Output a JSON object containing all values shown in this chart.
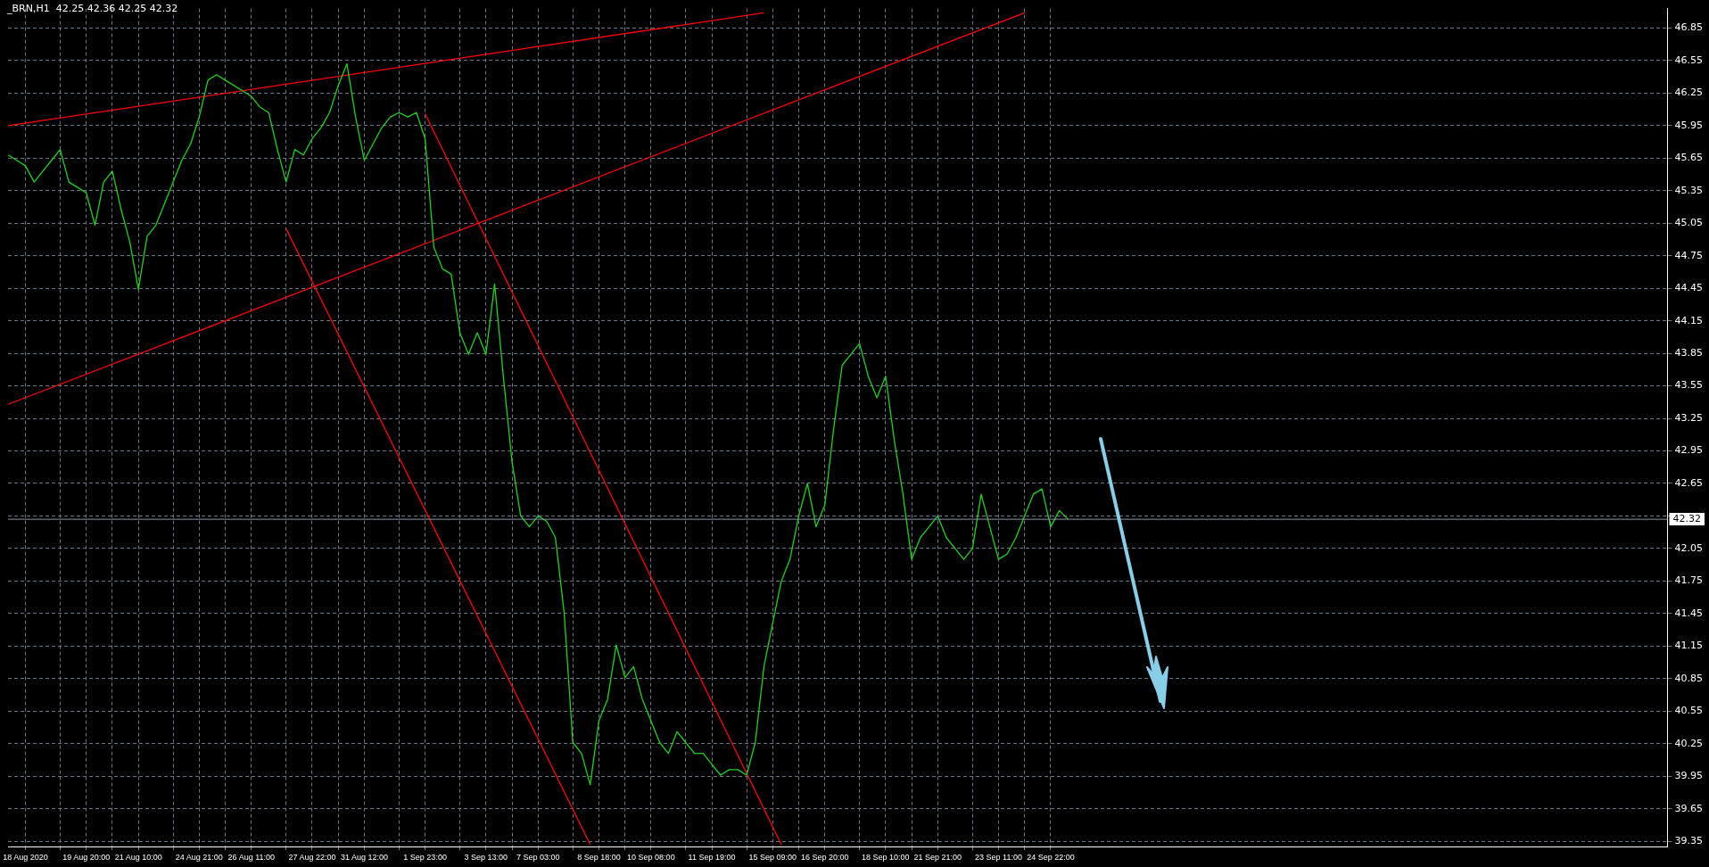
{
  "chart_data": {
    "type": "line",
    "title": "_BRN,H1  42.25 42.36 42.25 42.32",
    "categories": [
      null,
      null,
      "18 Aug 2020",
      null,
      null,
      null,
      null,
      null,
      null,
      "19 Aug 20:00",
      null,
      null,
      null,
      null,
      null,
      "21 Aug 10:00",
      null,
      null,
      null,
      null,
      null,
      null,
      "24 Aug 21:00",
      null,
      null,
      null,
      null,
      null,
      "26 Aug 11:00",
      null,
      null,
      null,
      null,
      null,
      null,
      "27 Aug 22:00",
      null,
      null,
      null,
      null,
      null,
      "31 Aug 12:00",
      null,
      null,
      null,
      null,
      null,
      null,
      "1 Sep 23:00",
      null,
      null,
      null,
      null,
      null,
      null,
      "3 Sep 13:00",
      null,
      null,
      null,
      null,
      null,
      "7 Sep 03:00",
      null,
      null,
      null,
      null,
      null,
      null,
      "8 Sep 18:00",
      null,
      null,
      null,
      null,
      null,
      "10 Sep 08:00",
      null,
      null,
      null,
      null,
      null,
      null,
      "11 Sep 19:00",
      null,
      null,
      null,
      null,
      null,
      null,
      "15 Sep 09:00",
      null,
      null,
      null,
      null,
      null,
      "16 Sep 20:00",
      null,
      null,
      null,
      null,
      null,
      null,
      "18 Sep 10:00",
      null,
      null,
      null,
      null,
      null,
      "21 Sep 21:00",
      null,
      null,
      null,
      null,
      null,
      null,
      "23 Sep 11:00",
      null,
      null,
      null,
      null,
      null,
      "24 Sep 22:00",
      null,
      null,
      null,
      null,
      null,
      null,
      null,
      null,
      null,
      null,
      null,
      null,
      null,
      null,
      null,
      null,
      null,
      null,
      null,
      null,
      null,
      null,
      null,
      null,
      null,
      null,
      null,
      null,
      null,
      null,
      null,
      null,
      null,
      null,
      null,
      null,
      null,
      null,
      null,
      null,
      null,
      null,
      null,
      null,
      null,
      null,
      null,
      null,
      null,
      null,
      null,
      null,
      null,
      null,
      null,
      null,
      null,
      null,
      null,
      null,
      null,
      null,
      null,
      null,
      null,
      null,
      null,
      null,
      null,
      null,
      null
    ],
    "series": [
      {
        "color": "#1ed21e",
        "values": [
          45.68,
          45.63,
          45.58,
          45.43,
          45.53,
          45.63,
          45.73,
          45.43,
          45.38,
          45.33,
          45.03,
          45.43,
          45.53,
          45.18,
          44.88,
          44.44,
          44.93,
          45.03,
          45.23,
          45.43,
          45.63,
          45.78,
          46.03,
          46.37,
          46.42,
          46.37,
          46.32,
          46.27,
          46.22,
          46.12,
          46.07,
          45.73,
          45.43,
          45.73,
          45.68,
          45.83,
          45.93,
          46.07,
          46.32,
          46.52,
          46.03,
          45.63,
          45.78,
          45.93,
          46.03,
          46.07,
          46.03,
          46.07,
          45.83,
          44.83,
          44.63,
          44.58,
          44.04,
          43.84,
          44.04,
          43.84,
          44.49,
          43.64,
          42.85,
          42.35,
          42.25,
          42.35,
          42.3,
          42.15,
          41.46,
          40.26,
          40.16,
          39.87,
          40.46,
          40.66,
          41.16,
          40.86,
          40.96,
          40.66,
          40.46,
          40.26,
          40.16,
          40.36,
          40.26,
          40.16,
          40.16,
          40.06,
          39.96,
          40.01,
          40.01,
          39.96,
          40.26,
          40.96,
          41.36,
          41.75,
          41.95,
          42.35,
          42.65,
          42.25,
          42.45,
          43.14,
          43.74,
          43.84,
          43.94,
          43.64,
          43.44,
          43.64,
          43.05,
          42.55,
          41.95,
          42.15,
          42.25,
          42.35,
          42.15,
          42.05,
          41.95,
          42.05,
          42.55,
          42.25,
          41.95,
          42.0,
          42.15,
          42.35,
          42.55,
          42.6,
          42.25,
          42.4,
          42.32,
          null,
          null,
          null,
          null,
          null,
          null,
          null,
          null,
          null,
          null,
          null,
          null,
          null,
          null,
          null,
          null,
          null,
          null,
          null,
          null,
          null,
          null,
          null,
          null,
          null,
          null,
          null,
          null,
          null,
          null,
          null,
          null,
          null,
          null,
          null,
          null,
          null,
          null,
          null,
          null,
          null,
          null,
          null,
          null,
          null,
          null,
          null,
          null,
          null,
          null,
          null,
          null,
          null,
          null,
          null,
          null,
          null,
          null,
          null,
          null,
          null,
          null,
          null,
          null,
          null,
          null,
          null,
          null,
          null
        ]
      },
      {
        "type": "line",
        "color": "#ff0000",
        "values": [
          45.95,
          null,
          null,
          null,
          null,
          null,
          null,
          null,
          null,
          null,
          null,
          null,
          null,
          null,
          null,
          null,
          null,
          null,
          null,
          null,
          null,
          null,
          null,
          null,
          null,
          null,
          null,
          null,
          null,
          null,
          null,
          null,
          null,
          null,
          null,
          null,
          null,
          null,
          null,
          null,
          null,
          null,
          null,
          null,
          null,
          null,
          null,
          null,
          null,
          null,
          null,
          null,
          null,
          null,
          null,
          null,
          null,
          null,
          null,
          null,
          null,
          null,
          null,
          null,
          null,
          null,
          null,
          null,
          null,
          null,
          null,
          null,
          null,
          null,
          null,
          null,
          null,
          null,
          null,
          null,
          null,
          null,
          null,
          null,
          null,
          null,
          null,
          46.99,
          null,
          null,
          null,
          null,
          null,
          null,
          null,
          null,
          null,
          null,
          null,
          null,
          null,
          null,
          null,
          null,
          null,
          null,
          null,
          null,
          null,
          null,
          null,
          null,
          null,
          null,
          null,
          null,
          null,
          null,
          null,
          null,
          null,
          null,
          null,
          null,
          null,
          null,
          null,
          null,
          null,
          null,
          null,
          null,
          null,
          null,
          null,
          null,
          null,
          null,
          null,
          null,
          null,
          null,
          null,
          null,
          null,
          null,
          null,
          null,
          null,
          null,
          null,
          null,
          null,
          null,
          null,
          null,
          null,
          null,
          null,
          null,
          null,
          null,
          null,
          null,
          null,
          null,
          null,
          null,
          null,
          null,
          null,
          null,
          null,
          null,
          null,
          null,
          null,
          null,
          null,
          null,
          null,
          null,
          null,
          null,
          null,
          null,
          null,
          null,
          null,
          null,
          null,
          null
        ]
      },
      {
        "type": "line",
        "color": "#ff0000",
        "values": [
          43.38,
          null,
          null,
          null,
          null,
          null,
          null,
          null,
          null,
          null,
          null,
          null,
          null,
          null,
          null,
          null,
          null,
          null,
          null,
          null,
          null,
          null,
          null,
          null,
          null,
          null,
          null,
          null,
          null,
          null,
          null,
          null,
          null,
          null,
          null,
          null,
          null,
          null,
          null,
          null,
          null,
          null,
          null,
          null,
          null,
          null,
          null,
          null,
          null,
          null,
          null,
          null,
          null,
          null,
          null,
          null,
          null,
          null,
          null,
          null,
          null,
          null,
          null,
          null,
          null,
          null,
          null,
          null,
          null,
          null,
          null,
          null,
          null,
          null,
          null,
          null,
          null,
          null,
          null,
          null,
          null,
          null,
          null,
          null,
          null,
          null,
          null,
          null,
          null,
          null,
          null,
          null,
          null,
          null,
          null,
          null,
          null,
          null,
          null,
          null,
          null,
          null,
          null,
          null,
          null,
          null,
          null,
          null,
          null,
          null,
          null,
          null,
          null,
          null,
          null,
          null,
          null,
          46.99,
          null,
          null,
          null,
          null,
          null,
          null,
          null,
          null,
          null,
          null,
          null,
          null,
          null,
          null,
          null,
          null,
          null,
          null,
          null,
          null,
          null,
          null,
          null,
          null,
          null,
          null,
          null,
          null,
          null,
          null,
          null,
          null,
          null,
          null,
          null,
          null,
          null,
          null,
          null,
          null,
          null,
          null,
          null,
          null,
          null,
          null,
          null,
          null,
          null,
          null,
          null,
          null,
          null,
          null,
          null,
          null,
          null,
          null,
          null,
          null,
          null,
          null,
          null,
          null,
          null,
          null,
          null,
          null,
          null,
          null,
          null,
          null,
          null,
          null
        ]
      },
      {
        "type": "line",
        "color": "#ff0000",
        "values": [
          null,
          null,
          null,
          null,
          null,
          null,
          null,
          null,
          null,
          null,
          null,
          null,
          null,
          null,
          null,
          null,
          null,
          null,
          null,
          null,
          null,
          null,
          null,
          null,
          null,
          null,
          null,
          null,
          null,
          null,
          null,
          null,
          45.0,
          null,
          null,
          null,
          null,
          null,
          null,
          null,
          null,
          null,
          null,
          null,
          null,
          null,
          null,
          null,
          null,
          null,
          null,
          null,
          null,
          null,
          null,
          null,
          null,
          null,
          null,
          null,
          null,
          null,
          null,
          null,
          null,
          null,
          null,
          39.32,
          null,
          null,
          null,
          null,
          null,
          null,
          null,
          null,
          null,
          null,
          null,
          null,
          null,
          null,
          null,
          null,
          null,
          null,
          null,
          null,
          null,
          null,
          null,
          null,
          null,
          null,
          null,
          null,
          null,
          null,
          null,
          null,
          null,
          null,
          null,
          null,
          null,
          null,
          null,
          null,
          null,
          null,
          null,
          null,
          null,
          null,
          null,
          null,
          null,
          null,
          null,
          null,
          null,
          null,
          null,
          null,
          null,
          null,
          null,
          null,
          null,
          null,
          null,
          null,
          null,
          null,
          null,
          null,
          null,
          null,
          null,
          null,
          null,
          null,
          null,
          null,
          null,
          null,
          null,
          null,
          null,
          null,
          null,
          null,
          null,
          null,
          null,
          null,
          null,
          null,
          null,
          null,
          null,
          null,
          null,
          null,
          null,
          null,
          null,
          null,
          null,
          null,
          null,
          null,
          null,
          null,
          null,
          null,
          null,
          null,
          null,
          null,
          null,
          null,
          null,
          null,
          null,
          null,
          null,
          null,
          null,
          null,
          null,
          null
        ]
      },
      {
        "type": "line",
        "color": "#ff0000",
        "values": [
          null,
          null,
          null,
          null,
          null,
          null,
          null,
          null,
          null,
          null,
          null,
          null,
          null,
          null,
          null,
          null,
          null,
          null,
          null,
          null,
          null,
          null,
          null,
          null,
          null,
          null,
          null,
          null,
          null,
          null,
          null,
          null,
          null,
          null,
          null,
          null,
          null,
          null,
          null,
          null,
          null,
          null,
          null,
          null,
          null,
          null,
          null,
          null,
          46.06,
          null,
          null,
          null,
          null,
          null,
          null,
          null,
          null,
          null,
          null,
          null,
          null,
          null,
          null,
          null,
          null,
          null,
          null,
          null,
          null,
          null,
          null,
          null,
          null,
          null,
          null,
          null,
          null,
          null,
          null,
          null,
          null,
          null,
          null,
          null,
          null,
          null,
          null,
          null,
          null,
          39.32,
          null,
          null,
          null,
          null,
          null,
          null,
          null,
          null,
          null,
          null,
          null,
          null,
          null,
          null,
          null,
          null,
          null,
          null,
          null,
          null,
          null,
          null,
          null,
          null,
          null,
          null,
          null,
          null,
          null,
          null,
          null,
          null,
          null,
          null,
          null,
          null,
          null,
          null,
          null,
          null,
          null,
          null,
          null,
          null,
          null,
          null,
          null,
          null,
          null,
          null,
          null,
          null,
          null,
          null,
          null,
          null,
          null,
          null,
          null,
          null,
          null,
          null,
          null,
          null,
          null,
          null,
          null,
          null,
          null,
          null,
          null,
          null,
          null,
          null,
          null,
          null,
          null,
          null,
          null,
          null,
          null,
          null,
          null,
          null,
          null,
          null,
          null,
          null,
          null,
          null,
          null,
          null,
          null,
          null,
          null,
          null,
          null,
          null,
          null,
          null,
          null,
          null
        ]
      }
    ],
    "ylim": [
      39.3,
      47.03
    ],
    "yticks": [
      39.35,
      39.65,
      39.95,
      40.25,
      40.55,
      40.85,
      41.15,
      41.45,
      41.75,
      42.05,
      {
        "value": 42.35,
        "label": null
      },
      42.65,
      42.95,
      43.25,
      43.55,
      43.85,
      44.15,
      44.45,
      44.75,
      45.05,
      45.35,
      45.65,
      45.95,
      46.25,
      46.55,
      46.85
    ],
    "ref_lines": [
      {
        "axis": "y",
        "value": 42.32,
        "label": "42.32",
        "color": "#8796a8"
      }
    ],
    "grid": true,
    "legend": false,
    "marker": "none",
    "line_style": "solid"
  }
}
